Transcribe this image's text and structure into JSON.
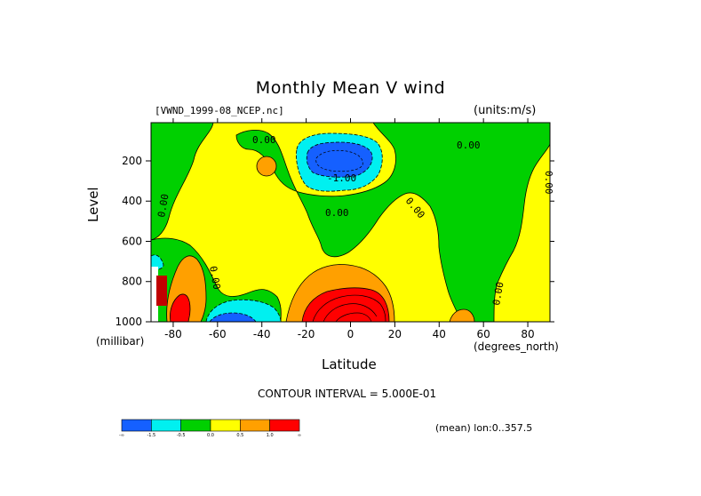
{
  "chart_data": {
    "type": "heatmap",
    "title": "Monthly Mean V wind",
    "dataset_label": "[VWND_1999-08_NCEP.nc]",
    "units_label": "(units:m/s)",
    "xlabel": "Latitude",
    "x_unit": "(degrees_north)",
    "ylabel": "Level",
    "y_unit": "(millibar)",
    "xlim": [
      -90,
      90
    ],
    "ylim": [
      1000,
      10
    ],
    "x_ticks": [
      -80,
      -60,
      -40,
      -20,
      0,
      20,
      40,
      60,
      80
    ],
    "y_ticks": [
      1000,
      800,
      600,
      400,
      200
    ],
    "contour_interval_label": "CONTOUR INTERVAL = 5.000E-01",
    "mean_label": "(mean) lon:0..357.5",
    "contour_labels": [
      "0.00",
      "-1.00",
      "0.00",
      "0.00",
      "0.00",
      "0.00",
      "0.00",
      "0.00",
      "0.00"
    ],
    "colorbar": {
      "colors": [
        "#1560ff",
        "#00f0f0",
        "#00d000",
        "#ffff00",
        "#ffa000",
        "#ff0000"
      ],
      "labels": [
        "-∞",
        "-1.5",
        "-0.5",
        "0.0",
        "0.5",
        "1.0",
        "∞"
      ]
    }
  }
}
